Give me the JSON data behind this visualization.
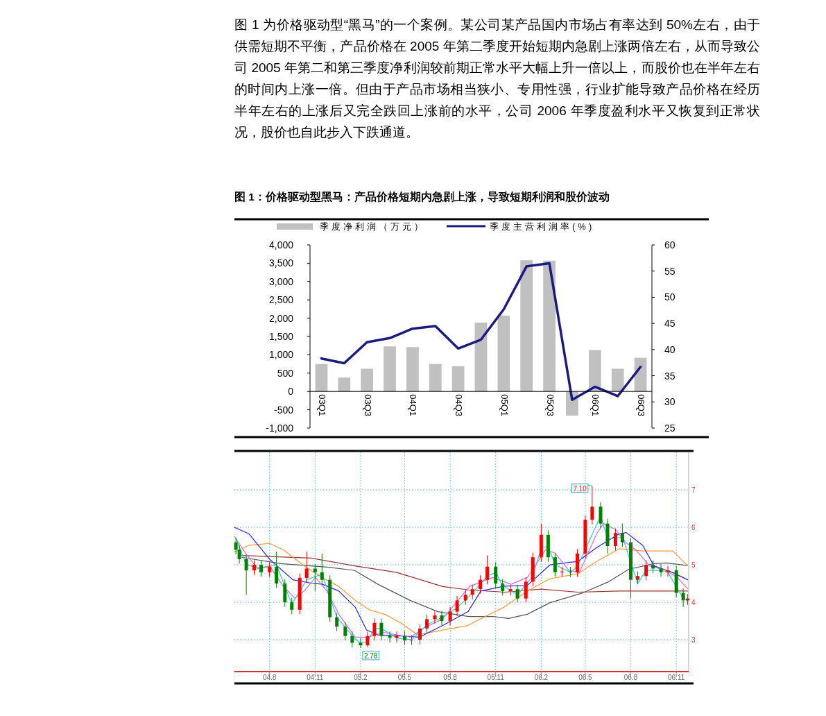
{
  "chart_data": [
    {
      "type": "bar",
      "title": "图 1：价格驱动型黑马：产品价格短期内急剧上涨，导致短期利润和股价波动",
      "annotations": [
        "图 1 为价格驱动型“黑马”的一个案例。某公司某产品国内市场占有率达到 50%左右，由于供需短期不平衡，产品价格在 2005 年第二季度开始短期内急剧上涨两倍左右，从而导致公司 2005 年第二和第三季度净利润较前期正常水平大幅上升一倍以上，而股价也在半年左右的时间内上涨一倍。但由于产品市场相当狭小、专用性强，行业扩能导致产品价格在经历半年左右的上涨后又完全跌回上涨前的水平，公司 2006 年季度盈利水平又恢复到正常状况，股价也自此步入下跌通道。"
      ],
      "categories": [
        "03Q1",
        null,
        "03Q3",
        null,
        "04Q1",
        null,
        "04Q3",
        null,
        "05Q1",
        null,
        "05Q3",
        null,
        "06Q1",
        null,
        "06Q3"
      ],
      "ylim": [
        -1000,
        4000
      ],
      "yticks": [
        {
          "value": -1000,
          "label": "-1,000"
        },
        {
          "value": -500,
          "label": "-500"
        },
        0,
        500,
        {
          "value": 1000,
          "label": "1,000"
        },
        {
          "value": 1500,
          "label": "1,500"
        },
        {
          "value": 2000,
          "label": "2,000"
        },
        {
          "value": 2500,
          "label": "2,500"
        },
        {
          "value": 3000,
          "label": "3,000"
        },
        {
          "value": 3500,
          "label": "3,500"
        },
        {
          "value": 4000,
          "label": "4,000"
        }
      ],
      "y2lim": [
        25,
        60
      ],
      "y2ticks": [
        25,
        30,
        35,
        40,
        45,
        50,
        55,
        60
      ],
      "legend": "top",
      "grid": false,
      "series": [
        {
          "name": "季度净利润（万元）",
          "color": "#c0c0c0",
          "values": [
            750,
            380,
            620,
            1230,
            1210,
            750,
            690,
            1880,
            2070,
            3580,
            3570,
            -660,
            1130,
            620,
            920
          ]
        },
        {
          "name": "季度主营利润率(%)",
          "type": "line",
          "axis": "y2",
          "color": "#1a1a80",
          "values": [
            38.3,
            37.4,
            41.4,
            42.2,
            44.0,
            44.5,
            40.2,
            41.9,
            47.7,
            55.9,
            56.5,
            30.4,
            32.9,
            31.1,
            36.7
          ]
        }
      ]
    },
    {
      "type": "candlestick",
      "xlim": [
        "2004-05-22",
        "2006-11-26"
      ],
      "xticks": [
        {
          "value": "2004-08",
          "label": "04.8"
        },
        {
          "value": "2004-11",
          "label": "04.11"
        },
        {
          "value": "2005-02",
          "label": "05.2"
        },
        {
          "value": "2005-05",
          "label": "05.5"
        },
        {
          "value": "2005-08",
          "label": "05.8"
        },
        {
          "value": "2005-11",
          "label": "05.11"
        },
        {
          "value": "2006-02",
          "label": "06.2"
        },
        {
          "value": "2006-05",
          "label": "06.5"
        },
        {
          "value": "2006-08",
          "label": "06.8"
        },
        {
          "value": "2006-11",
          "label": "06.11"
        }
      ],
      "ylim": [
        2.15,
        8
      ],
      "yticks": [
        3,
        4,
        5,
        6,
        7
      ],
      "grid": true,
      "annotations": [
        {
          "text": "7.10",
          "x": "2006-05-15",
          "y": 7.1
        },
        {
          "text": "2.78",
          "x": "2005-02-01",
          "y": 2.78
        }
      ],
      "series": [
        {
          "type": "line",
          "color": "#993333",
          "x": [
            "2004-06-06",
            "2004-10-24",
            "2005-01-20",
            "2005-04-14",
            "2005-07-17",
            "2005-09-07",
            "2005-11-19",
            "2006-02-01",
            "2006-04-16",
            "2006-07-09",
            "2006-11-04",
            "2006-11-24"
          ],
          "values": [
            5.25,
            5.18,
            4.97,
            4.8,
            4.42,
            4.33,
            4.27,
            4.35,
            4.27,
            4.3,
            4.3,
            4.3
          ]
        },
        {
          "type": "line",
          "color": "#555555",
          "x": [
            "2004-06-06",
            "2004-08-24",
            "2004-11-25",
            "2005-01-20",
            "2005-03-08",
            "2005-05-12",
            "2005-07-07",
            "2005-09-07",
            "2005-10-26",
            "2005-11-27",
            "2006-01-04",
            "2006-02-19",
            "2006-04-26",
            "2006-06-16",
            "2006-07-28",
            "2006-09-17",
            "2006-10-11",
            "2006-11-24"
          ],
          "values": [
            5.2,
            5.03,
            4.94,
            4.85,
            4.48,
            4.05,
            3.75,
            3.62,
            3.62,
            3.57,
            3.68,
            3.99,
            4.25,
            4.54,
            4.88,
            5.03,
            5.05,
            4.98
          ]
        },
        {
          "type": "line",
          "color": "#ff9933",
          "x": [
            "2004-05-22",
            "2004-06-20",
            "2004-08-01",
            "2004-08-29",
            "2004-10-10",
            "2004-11-16",
            "2004-12-19",
            "2005-01-21",
            "2005-02-18",
            "2005-03-22",
            "2005-04-24",
            "2005-05-27",
            "2005-07-17",
            "2005-09-06",
            "2005-10-02",
            "2005-11-18",
            "2006-01-04",
            "2006-02-19",
            "2006-04-16",
            "2006-05-24",
            "2006-07-09",
            "2006-08-25",
            "2006-10-25",
            "2006-11-24"
          ],
          "values": [
            5.34,
            5.52,
            5.57,
            5.4,
            4.97,
            4.66,
            4.42,
            4.05,
            3.8,
            3.68,
            3.44,
            3.13,
            3.26,
            3.38,
            3.56,
            3.87,
            4.3,
            4.63,
            4.76,
            5.09,
            5.43,
            5.37,
            5.37,
            4.97
          ]
        },
        {
          "type": "line",
          "color": "#2222ee",
          "x": [
            "2004-05-22",
            "2004-06-20",
            "2004-08-01",
            "2004-09-17",
            "2004-10-24",
            "2004-11-16",
            "2004-12-19",
            "2005-01-21",
            "2005-02-13",
            "2005-03-08",
            "2005-04-24",
            "2005-05-31",
            "2005-07-17",
            "2005-09-06",
            "2005-10-02",
            "2005-11-18",
            "2006-01-04",
            "2006-02-19",
            "2006-04-16",
            "2006-05-24",
            "2006-07-09",
            "2006-07-23",
            "2006-08-25",
            "2006-09-17",
            "2006-10-25",
            "2006-11-24"
          ],
          "values": [
            6.0,
            5.83,
            5.15,
            4.6,
            4.51,
            4.48,
            4.3,
            3.87,
            3.26,
            3.13,
            3.1,
            3.07,
            3.38,
            3.75,
            4.3,
            4.43,
            4.45,
            5.0,
            5.09,
            5.46,
            5.83,
            5.86,
            5.52,
            4.97,
            4.79,
            4.6
          ]
        },
        {
          "type": "line",
          "color": "#dd66dd",
          "x": [
            "2004-05-22",
            "2004-06-15",
            "2004-07-08",
            "2004-08-01",
            "2004-08-29",
            "2004-09-21",
            "2004-10-10",
            "2004-11-02",
            "2004-11-25",
            "2004-12-19",
            "2005-01-21",
            "2005-02-18",
            "2005-03-18",
            "2005-04-15",
            "2005-05-13",
            "2005-06-10",
            "2005-07-17",
            "2005-09-09",
            "2005-10-26",
            "2005-12-02",
            "2006-01-04",
            "2006-02-10",
            "2006-03-01",
            "2006-03-29",
            "2006-04-19",
            "2006-05-24",
            "2006-06-07",
            "2006-06-30",
            "2006-07-23",
            "2006-08-11",
            "2006-09-08",
            "2006-10-11",
            "2006-11-03",
            "2006-11-24"
          ],
          "values": [
            5.76,
            5.28,
            4.9,
            4.97,
            4.42,
            4.11,
            4.3,
            4.66,
            4.3,
            3.68,
            3.07,
            3.07,
            3.2,
            3.13,
            3.07,
            3.32,
            3.56,
            4.42,
            4.66,
            4.48,
            4.66,
            5.4,
            5.31,
            4.85,
            4.79,
            5.83,
            6.1,
            5.95,
            5.58,
            5.4,
            4.97,
            4.85,
            4.66,
            4.36
          ]
        },
        {
          "type": "line",
          "color": "#33cccc",
          "x": [
            "2004-05-25",
            "2004-06-15",
            "2004-07-15",
            "2004-08-15",
            "2004-09-15",
            "2004-10-15",
            "2004-11-15",
            "2004-12-15",
            "2005-01-15",
            "2005-02-01",
            "2005-02-15",
            "2005-03-01",
            "2005-03-15",
            "2005-04-15",
            "2005-05-15",
            "2005-06-15",
            "2005-07-15",
            "2005-08-15",
            "2005-09-15",
            "2005-10-15",
            "2005-11-01",
            "2005-11-15",
            "2005-12-15",
            "2006-01-15",
            "2006-02-01",
            "2006-02-15",
            "2006-03-01",
            "2006-04-01",
            "2006-04-15",
            "2006-06-01",
            "2006-06-15",
            "2006-07-01",
            "2006-07-15",
            "2006-08-15",
            "2006-09-01",
            "2006-10-01",
            "2006-10-15",
            "2006-11-15",
            "2006-11-24"
          ],
          "values": [
            5.7,
            5.0,
            4.9,
            5.0,
            3.95,
            4.6,
            4.75,
            3.6,
            3.1,
            2.9,
            2.95,
            3.3,
            3.3,
            3.05,
            3.0,
            3.4,
            3.6,
            3.85,
            4.25,
            4.7,
            4.8,
            4.45,
            4.2,
            4.7,
            5.45,
            5.5,
            5.0,
            4.8,
            4.95,
            6.3,
            5.7,
            5.7,
            5.75,
            4.5,
            4.85,
            4.85,
            4.8,
            4.1,
            4.05
          ]
        },
        {
          "x": [
            "2004-05-25",
            "2004-06-01",
            "2004-06-15",
            "2004-07-01",
            "2004-07-15",
            "2004-08-01",
            "2004-08-15",
            "2004-09-01",
            "2004-09-15",
            "2004-10-01",
            "2004-10-15",
            "2004-11-01",
            "2004-11-15",
            "2004-12-01",
            "2004-12-15",
            "2005-01-01",
            "2005-01-15",
            "2005-02-01",
            "2005-02-15",
            "2005-03-01",
            "2005-03-15",
            "2005-04-01",
            "2005-04-15",
            "2005-05-01",
            "2005-05-15",
            "2005-06-01",
            "2005-06-15",
            "2005-07-01",
            "2005-07-15",
            "2005-08-01",
            "2005-08-15",
            "2005-09-01",
            "2005-09-15",
            "2005-10-01",
            "2005-10-15",
            "2005-11-01",
            "2005-11-15",
            "2005-12-01",
            "2005-12-15",
            "2006-01-01",
            "2006-01-15",
            "2006-02-01",
            "2006-02-15",
            "2006-03-01",
            "2006-03-15",
            "2006-04-01",
            "2006-04-15",
            "2006-05-01",
            "2006-05-15",
            "2006-06-01",
            "2006-06-15",
            "2006-07-01",
            "2006-07-15",
            "2006-08-01",
            "2006-08-15",
            "2006-09-01",
            "2006-09-15",
            "2006-10-01",
            "2006-10-15",
            "2006-11-01",
            "2006-11-15",
            "2006-11-24"
          ],
          "ohlc": [
            [
              5.6,
              5.72,
              5.28,
              5.4
            ],
            [
              5.4,
              5.52,
              5.03,
              5.15
            ],
            [
              5.15,
              5.27,
              4.2,
              4.85
            ],
            [
              4.85,
              5.12,
              4.73,
              5.0
            ],
            [
              5.0,
              5.12,
              4.68,
              4.8
            ],
            [
              4.8,
              5.07,
              4.68,
              4.95
            ],
            [
              4.95,
              5.35,
              4.38,
              4.5
            ],
            [
              4.5,
              4.62,
              3.88,
              4.0
            ],
            [
              4.0,
              4.12,
              3.68,
              3.8
            ],
            [
              3.8,
              4.77,
              3.68,
              4.65
            ],
            [
              4.65,
              5.35,
              4.53,
              4.9
            ],
            [
              4.9,
              5.02,
              4.3,
              4.8
            ],
            [
              4.8,
              5.3,
              4.48,
              4.6
            ],
            [
              4.6,
              4.72,
              3.48,
              3.6
            ],
            [
              3.6,
              3.72,
              3.23,
              3.35
            ],
            [
              3.35,
              3.47,
              2.98,
              3.1
            ],
            [
              3.1,
              3.22,
              2.8,
              2.92
            ],
            [
              2.92,
              3.04,
              2.78,
              2.85
            ],
            [
              2.85,
              3.22,
              2.8,
              3.1
            ],
            [
              3.1,
              3.57,
              2.98,
              3.45
            ],
            [
              3.45,
              3.57,
              2.98,
              3.1
            ],
            [
              3.1,
              3.22,
              2.93,
              3.05
            ],
            [
              3.05,
              3.22,
              2.93,
              3.1
            ],
            [
              3.1,
              3.22,
              2.86,
              2.98
            ],
            [
              2.98,
              3.12,
              2.86,
              3.0
            ],
            [
              3.0,
              3.42,
              2.88,
              3.3
            ],
            [
              3.3,
              3.67,
              3.18,
              3.55
            ],
            [
              3.55,
              3.77,
              3.43,
              3.65
            ],
            [
              3.65,
              3.77,
              3.38,
              3.5
            ],
            [
              3.5,
              3.87,
              3.38,
              3.75
            ],
            [
              3.75,
              4.17,
              3.63,
              4.05
            ],
            [
              4.05,
              4.32,
              3.93,
              4.2
            ],
            [
              4.2,
              4.47,
              4.08,
              4.35
            ],
            [
              4.35,
              4.72,
              4.23,
              4.6
            ],
            [
              4.6,
              5.25,
              4.48,
              4.95
            ],
            [
              4.95,
              5.07,
              4.38,
              4.5
            ],
            [
              4.5,
              4.62,
              4.18,
              4.3
            ],
            [
              4.3,
              4.47,
              4.18,
              4.35
            ],
            [
              4.35,
              4.47,
              4.0,
              4.1
            ],
            [
              4.1,
              4.67,
              4.0,
              4.55
            ],
            [
              4.55,
              5.32,
              4.43,
              5.2
            ],
            [
              5.2,
              6.1,
              5.08,
              5.8
            ],
            [
              5.8,
              5.92,
              5.08,
              5.2
            ],
            [
              5.2,
              5.32,
              4.68,
              4.8
            ],
            [
              4.8,
              4.94,
              4.68,
              4.82
            ],
            [
              4.82,
              4.94,
              4.68,
              4.8
            ],
            [
              4.8,
              5.42,
              4.68,
              5.3
            ],
            [
              5.3,
              6.32,
              5.18,
              6.2
            ],
            [
              6.2,
              7.1,
              6.08,
              6.55
            ],
            [
              6.55,
              6.67,
              5.98,
              6.1
            ],
            [
              6.1,
              6.22,
              5.3,
              5.5
            ],
            [
              5.5,
              5.97,
              5.38,
              5.85
            ],
            [
              5.85,
              6.1,
              5.48,
              5.6
            ],
            [
              5.6,
              5.72,
              4.1,
              4.6
            ],
            [
              4.6,
              4.82,
              4.48,
              4.7
            ],
            [
              4.7,
              5.12,
              4.58,
              5.0
            ],
            [
              5.0,
              5.12,
              4.78,
              4.9
            ],
            [
              4.9,
              5.02,
              4.68,
              4.8
            ],
            [
              4.8,
              4.97,
              4.68,
              4.85
            ],
            [
              4.85,
              4.97,
              4.13,
              4.25
            ],
            [
              4.25,
              4.37,
              3.87,
              4.05
            ],
            [
              4.05,
              4.22,
              3.93,
              4.1
            ]
          ],
          "colors": [
            "#008000",
            "#008000",
            "#008000",
            "#ff0000",
            "#008000",
            "#ff0000",
            "#008000",
            "#008000",
            "#008000",
            "#ff0000",
            "#ff0000",
            "#008000",
            "#008000",
            "#008000",
            "#008000",
            "#008000",
            "#008000",
            "#008000",
            "#ff0000",
            "#ff0000",
            "#008000",
            "#008000",
            "#ff0000",
            "#008000",
            "#ff0000",
            "#ff0000",
            "#ff0000",
            "#ff0000",
            "#008000",
            "#ff0000",
            "#ff0000",
            "#ff0000",
            "#ff0000",
            "#ff0000",
            "#ff0000",
            "#008000",
            "#008000",
            "#ff0000",
            "#008000",
            "#ff0000",
            "#ff0000",
            "#ff0000",
            "#008000",
            "#008000",
            "#ff0000",
            "#008000",
            "#ff0000",
            "#ff0000",
            "#ff0000",
            "#008000",
            "#008000",
            "#ff0000",
            "#008000",
            "#008000",
            "#ff0000",
            "#ff0000",
            "#008000",
            "#008000",
            "#ff0000",
            "#008000",
            "#008000",
            "#ff0000"
          ]
        }
      ]
    }
  ]
}
